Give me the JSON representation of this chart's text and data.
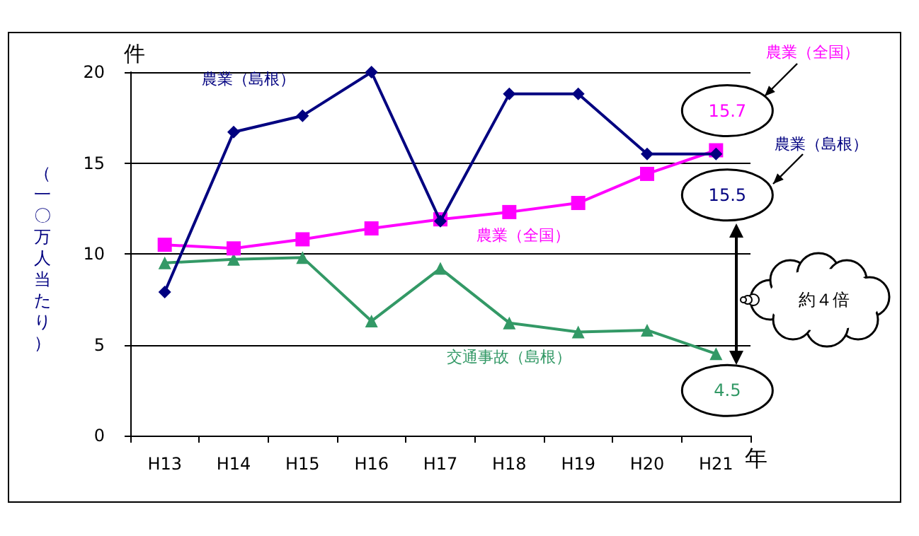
{
  "chart_data": {
    "type": "line",
    "categories": [
      "H13",
      "H14",
      "H15",
      "H16",
      "H17",
      "H18",
      "H19",
      "H20",
      "H21"
    ],
    "series": [
      {
        "name": "農業（島根）",
        "color": "#000080",
        "marker": "diamond",
        "values": [
          7.9,
          16.7,
          17.6,
          20.0,
          11.8,
          18.8,
          18.8,
          15.5,
          15.5
        ]
      },
      {
        "name": "農業（全国）",
        "color": "#ff00ff",
        "marker": "square",
        "values": [
          10.5,
          10.3,
          10.8,
          11.4,
          11.9,
          12.3,
          12.8,
          14.4,
          15.7
        ]
      },
      {
        "name": "交通事故（島根）",
        "color": "#339966",
        "marker": "triangle",
        "values": [
          9.5,
          9.7,
          9.8,
          6.3,
          9.2,
          6.2,
          5.7,
          5.8,
          4.5
        ]
      }
    ],
    "ylabel": "（一〇万人当たり）",
    "xlabel": "年",
    "ylim": [
      0,
      20
    ],
    "yticks": [
      0,
      5,
      10,
      15,
      20
    ],
    "grid": "y",
    "legend": false,
    "line_style": "solid",
    "annotations": [
      "件",
      {
        "text": "15.7",
        "x": "H21",
        "y": 15.7
      },
      {
        "text": "15.5",
        "x": "H21",
        "y": 15.5
      },
      {
        "text": "4.5",
        "x": "H21",
        "y": 4.5
      },
      "農業（全国）",
      "農業（島根）",
      "約４倍"
    ]
  }
}
